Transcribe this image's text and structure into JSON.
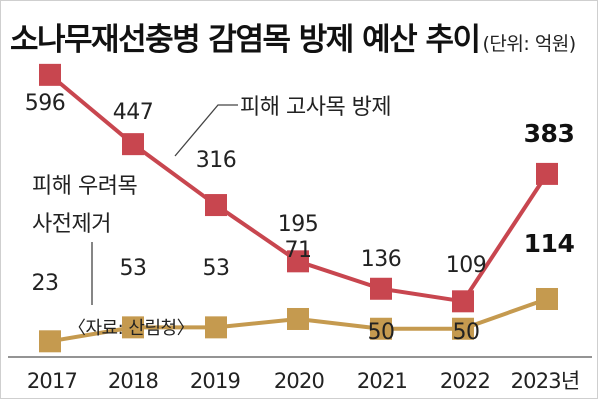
{
  "chart_data": {
    "type": "line",
    "title": "소나무재선충병 감염목 방제 예산 추이",
    "unit": "(단위: 억원)",
    "x": [
      "2017",
      "2018",
      "2019",
      "2020",
      "2021",
      "2022",
      "2023"
    ],
    "x_tick_labels": [
      "2017",
      "2018",
      "2019",
      "2020",
      "2021",
      "2022",
      "2023년"
    ],
    "series": [
      {
        "name": "피해 고사목 방제",
        "color": "#c8464f",
        "values": [
          596,
          447,
          316,
          195,
          136,
          109,
          383
        ],
        "labels": [
          "596",
          "447",
          "316",
          "195",
          "136",
          "109",
          "383"
        ]
      },
      {
        "name_lines": [
          "피해 우려목",
          "사전제거"
        ],
        "color": "#c59a4f",
        "values": [
          23,
          53,
          53,
          71,
          50,
          50,
          114
        ],
        "labels": [
          "23",
          "53",
          "53",
          "71",
          "50",
          "50",
          "114"
        ]
      }
    ],
    "source": "〈자료: 산림청〉",
    "grid": false
  }
}
